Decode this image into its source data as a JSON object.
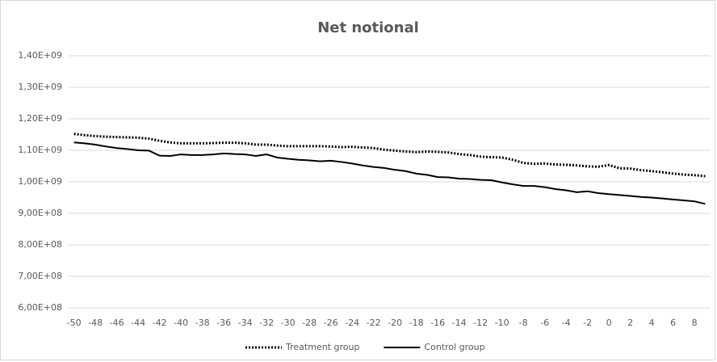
{
  "chart_data": {
    "type": "line",
    "title": "Net notional",
    "categories": [
      -50,
      null,
      -48,
      null,
      -46,
      null,
      -44,
      null,
      -42,
      null,
      -40,
      null,
      -38,
      null,
      -36,
      null,
      -34,
      null,
      -32,
      null,
      -30,
      null,
      -28,
      null,
      -26,
      null,
      -24,
      null,
      -22,
      null,
      -20,
      null,
      -18,
      null,
      -16,
      null,
      -14,
      null,
      -12,
      null,
      -10,
      null,
      -8,
      null,
      -6,
      null,
      -4,
      null,
      -2,
      null,
      0,
      null,
      2,
      null,
      4,
      null,
      6,
      null,
      8,
      null
    ],
    "series": [
      {
        "name": "Treatment group",
        "color": "#000000",
        "line_style": "dotted",
        "values": [
          1152000000,
          1148000000,
          1145000000,
          1143000000,
          1142000000,
          1141000000,
          1140000000,
          1137000000,
          1130000000,
          1125000000,
          1122000000,
          1122000000,
          1122000000,
          1123000000,
          1124000000,
          1124000000,
          1122000000,
          1118000000,
          1118000000,
          1115000000,
          1113000000,
          1113000000,
          1113000000,
          1113000000,
          1112000000,
          1110000000,
          1111000000,
          1109000000,
          1107000000,
          1102000000,
          1099000000,
          1096000000,
          1094000000,
          1096000000,
          1095000000,
          1093000000,
          1088000000,
          1085000000,
          1080000000,
          1078000000,
          1077000000,
          1070000000,
          1060000000,
          1057000000,
          1058000000,
          1055000000,
          1054000000,
          1052000000,
          1049000000,
          1048000000,
          1053000000,
          1043000000,
          1042000000,
          1037000000,
          1034000000,
          1030000000,
          1026000000,
          1023000000,
          1021000000,
          1018000000
        ]
      },
      {
        "name": "Control group",
        "color": "#000000",
        "line_style": "solid",
        "values": [
          1125000000,
          1122000000,
          1118000000,
          1112000000,
          1107000000,
          1104000000,
          1100000000,
          1099000000,
          1083000000,
          1082000000,
          1087000000,
          1085000000,
          1085000000,
          1087000000,
          1090000000,
          1088000000,
          1087000000,
          1082000000,
          1087000000,
          1077000000,
          1073000000,
          1070000000,
          1068000000,
          1065000000,
          1067000000,
          1063000000,
          1058000000,
          1052000000,
          1047000000,
          1044000000,
          1038000000,
          1034000000,
          1026000000,
          1022000000,
          1015000000,
          1014000000,
          1010000000,
          1009000000,
          1006000000,
          1005000000,
          998000000,
          992000000,
          987000000,
          987000000,
          983000000,
          977000000,
          973000000,
          967000000,
          970000000,
          964000000,
          961000000,
          958000000,
          955000000,
          952000000,
          950000000,
          947000000,
          944000000,
          941000000,
          938000000,
          930000000
        ]
      }
    ],
    "ylim": [
      600000000,
      1400000000
    ],
    "yticks": [
      {
        "value": 600000000,
        "label": "6,00E+08"
      },
      {
        "value": 700000000,
        "label": "7,00E+08"
      },
      {
        "value": 800000000,
        "label": "8,00E+08"
      },
      {
        "value": 900000000,
        "label": "9,00E+08"
      },
      {
        "value": 1000000000,
        "label": "1,00E+09"
      },
      {
        "value": 1100000000,
        "label": "1,10E+09"
      },
      {
        "value": 1200000000,
        "label": "1,20E+09"
      },
      {
        "value": 1300000000,
        "label": "1,30E+09"
      },
      {
        "value": 1400000000,
        "label": "1,40E+09"
      }
    ],
    "grid": true,
    "legend": "bottom"
  }
}
